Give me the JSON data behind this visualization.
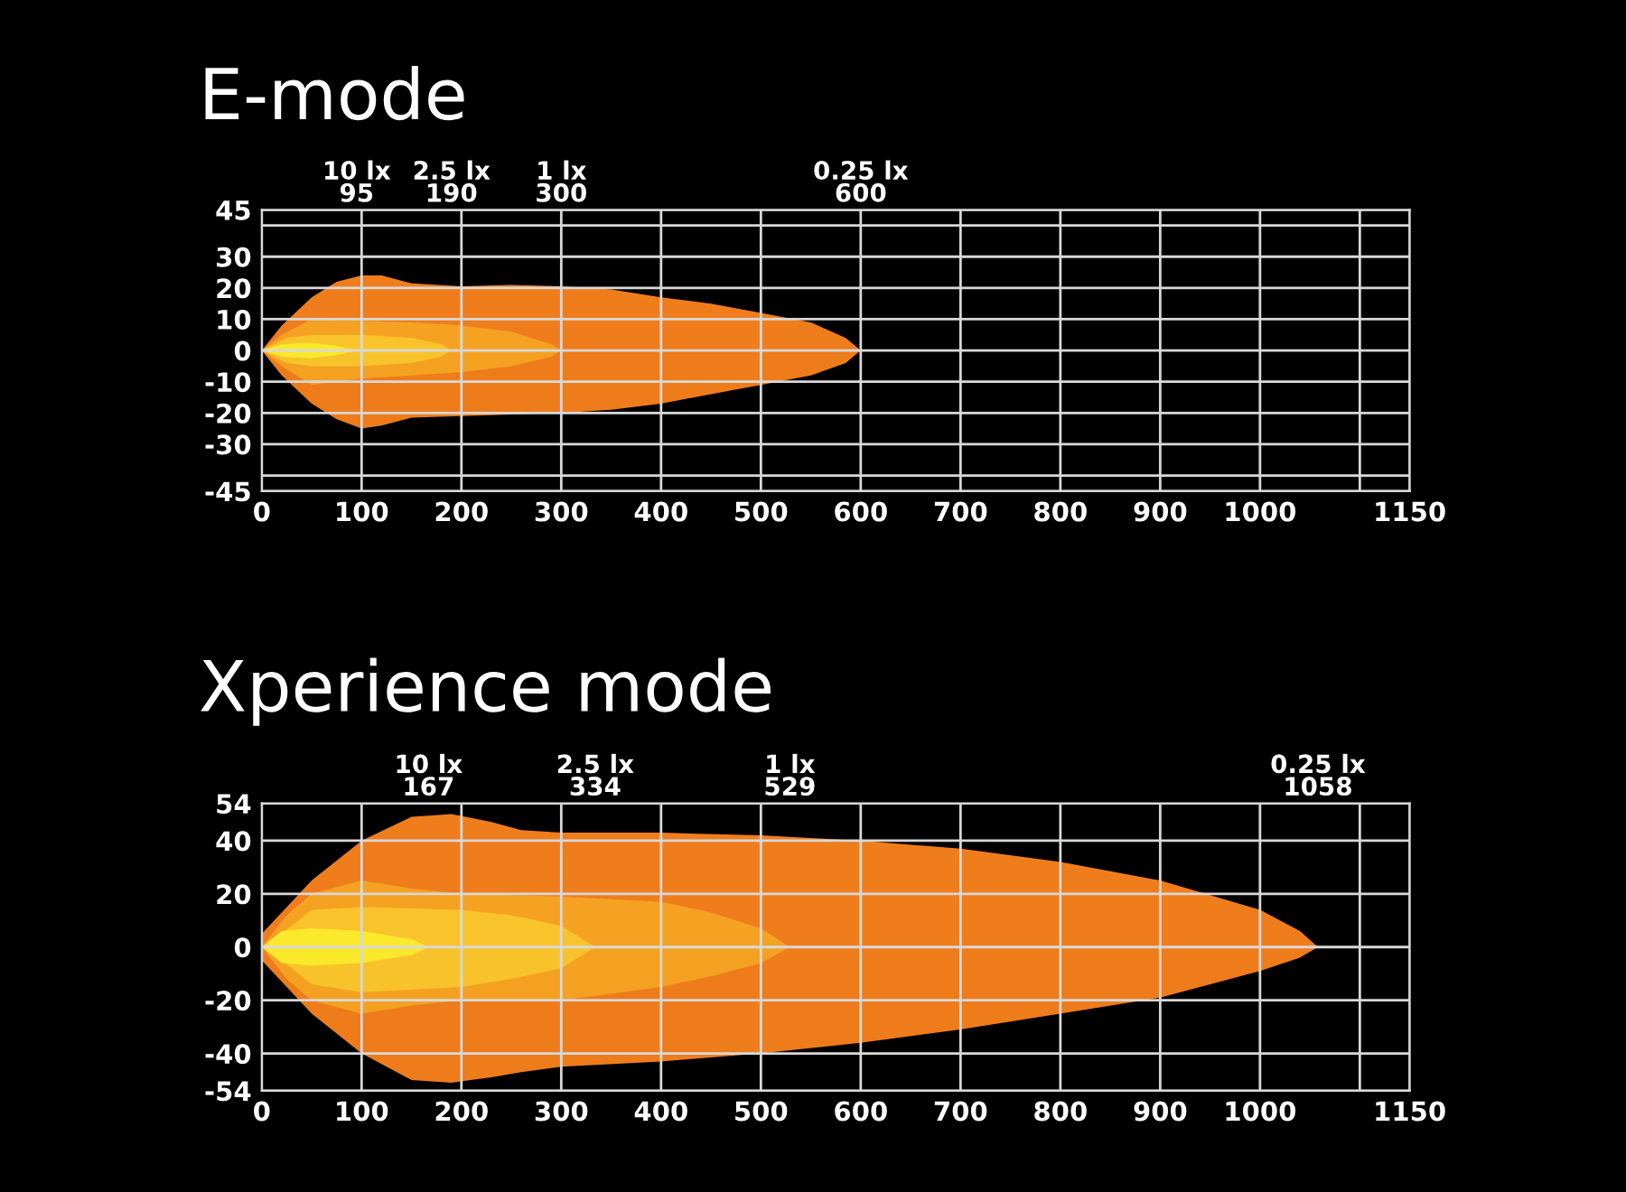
{
  "chart_data": [
    {
      "type": "area",
      "title": "E-mode",
      "xlim": [
        0,
        1150
      ],
      "xticks": [
        0,
        100,
        200,
        300,
        400,
        500,
        600,
        700,
        800,
        900,
        1000,
        {
          "value": 1100,
          "label": null
        },
        1150
      ],
      "ylim": [
        -45,
        45
      ],
      "yticks": [
        -45,
        {
          "value": -40,
          "label": null
        },
        -30,
        -20,
        -10,
        0,
        10,
        20,
        30,
        {
          "value": 40,
          "label": null
        },
        45
      ],
      "grid": true,
      "annotations": [
        "10 lx\n95",
        "2.5 lx\n190",
        "1 lx\n300",
        "0.25 lx\n600"
      ],
      "series": [
        {
          "color": "#ef7d1c",
          "x": [
            0,
            20,
            50,
            75,
            100,
            120,
            150,
            200,
            250,
            300,
            350,
            400,
            450,
            500,
            550,
            585,
            600
          ],
          "values": [
            0,
            8,
            17,
            22,
            24,
            24,
            21.5,
            20.5,
            21,
            20.5,
            19.5,
            17,
            15,
            12,
            9,
            4,
            0
          ]
        },
        {
          "color": "#ee7c1b",
          "x": [
            0,
            20,
            50,
            75,
            100,
            120,
            150,
            200,
            250,
            300,
            350,
            400,
            450,
            500,
            550,
            585,
            600
          ],
          "values": [
            0,
            -8,
            -17,
            -22,
            -25,
            -24,
            -21.5,
            -21,
            -20.5,
            -20,
            -19,
            -17,
            -14,
            -11,
            -8,
            -4,
            0
          ]
        },
        {
          "color": "#f5a223",
          "x": [
            0,
            20,
            50,
            100,
            150,
            200,
            250,
            290,
            300
          ],
          "values": [
            0,
            5,
            10,
            9.5,
            9,
            8,
            6,
            2,
            0
          ]
        },
        {
          "color": "#f4a122",
          "x": [
            0,
            20,
            50,
            100,
            150,
            200,
            250,
            290,
            300
          ],
          "values": [
            0,
            -5,
            -11,
            -9,
            -8,
            -7,
            -5,
            -2,
            0
          ]
        },
        {
          "color": "#f9c42b",
          "x": [
            0,
            25,
            50,
            100,
            150,
            180,
            190
          ],
          "values": [
            0,
            4,
            5,
            5,
            4,
            2,
            0
          ]
        },
        {
          "color": "#f8c32a",
          "x": [
            0,
            25,
            50,
            100,
            150,
            180,
            190
          ],
          "values": [
            0,
            -4,
            -5,
            -5,
            -4,
            -2,
            0
          ]
        },
        {
          "color": "#fbe92b",
          "x": [
            0,
            20,
            50,
            75,
            95
          ],
          "values": [
            0,
            2,
            2.5,
            1.5,
            0
          ]
        },
        {
          "color": "#fae82a",
          "x": [
            0,
            20,
            50,
            75,
            95
          ],
          "values": [
            0,
            -2,
            -2.5,
            -1.5,
            0
          ]
        }
      ]
    },
    {
      "type": "area",
      "title": "Xperience mode",
      "xlim": [
        0,
        1150
      ],
      "xticks": [
        0,
        100,
        200,
        300,
        400,
        500,
        600,
        700,
        800,
        900,
        1000,
        {
          "value": 1100,
          "label": null
        },
        1150
      ],
      "ylim": [
        -54,
        54
      ],
      "yticks": [
        -54,
        -40,
        -20,
        0,
        20,
        40,
        54
      ],
      "grid": true,
      "annotations": [
        "10 lx\n167",
        "2.5 lx\n334",
        "1 lx\n529",
        "0.25 lx\n1058"
      ],
      "series": [
        {
          "color": "#ef7d1c",
          "x": [
            0,
            25,
            50,
            100,
            150,
            190,
            230,
            260,
            300,
            400,
            500,
            600,
            700,
            800,
            900,
            1000,
            1040,
            1058
          ],
          "values": [
            5,
            15,
            25,
            40,
            49,
            50,
            47,
            44,
            43,
            43,
            42,
            40,
            37,
            32,
            25,
            14,
            6,
            0
          ]
        },
        {
          "color": "#ee7c1b",
          "x": [
            0,
            25,
            50,
            100,
            150,
            190,
            230,
            260,
            300,
            400,
            500,
            600,
            700,
            800,
            900,
            1000,
            1040,
            1058
          ],
          "values": [
            -5,
            -15,
            -25,
            -40,
            -50,
            -51,
            -49,
            -47,
            -45,
            -43,
            -40,
            -36,
            -31,
            -25,
            -19,
            -9,
            -4,
            0
          ]
        },
        {
          "color": "#f5a223",
          "x": [
            0,
            25,
            50,
            100,
            150,
            200,
            300,
            400,
            450,
            500,
            529
          ],
          "values": [
            0,
            12,
            20,
            25,
            22,
            20,
            19,
            17,
            13,
            7,
            0
          ]
        },
        {
          "color": "#f4a122",
          "x": [
            0,
            25,
            50,
            100,
            150,
            200,
            300,
            400,
            450,
            500,
            529
          ],
          "values": [
            0,
            -12,
            -20,
            -25,
            -22,
            -20,
            -20,
            -15,
            -11,
            -6,
            0
          ]
        },
        {
          "color": "#f9c42b",
          "x": [
            0,
            30,
            50,
            100,
            200,
            250,
            300,
            334
          ],
          "values": [
            0,
            8,
            14,
            15,
            14,
            12,
            8,
            0
          ]
        },
        {
          "color": "#f8c32a",
          "x": [
            0,
            30,
            50,
            100,
            200,
            250,
            300,
            334
          ],
          "values": [
            0,
            -8,
            -14,
            -17,
            -15,
            -12,
            -8,
            0
          ]
        },
        {
          "color": "#fbe92b",
          "x": [
            0,
            20,
            50,
            100,
            150,
            167
          ],
          "values": [
            0,
            6,
            7,
            6,
            3,
            0
          ]
        },
        {
          "color": "#fae82a",
          "x": [
            0,
            20,
            50,
            100,
            150,
            167
          ],
          "values": [
            0,
            -6,
            -7,
            -6,
            -3,
            0
          ]
        }
      ]
    }
  ]
}
